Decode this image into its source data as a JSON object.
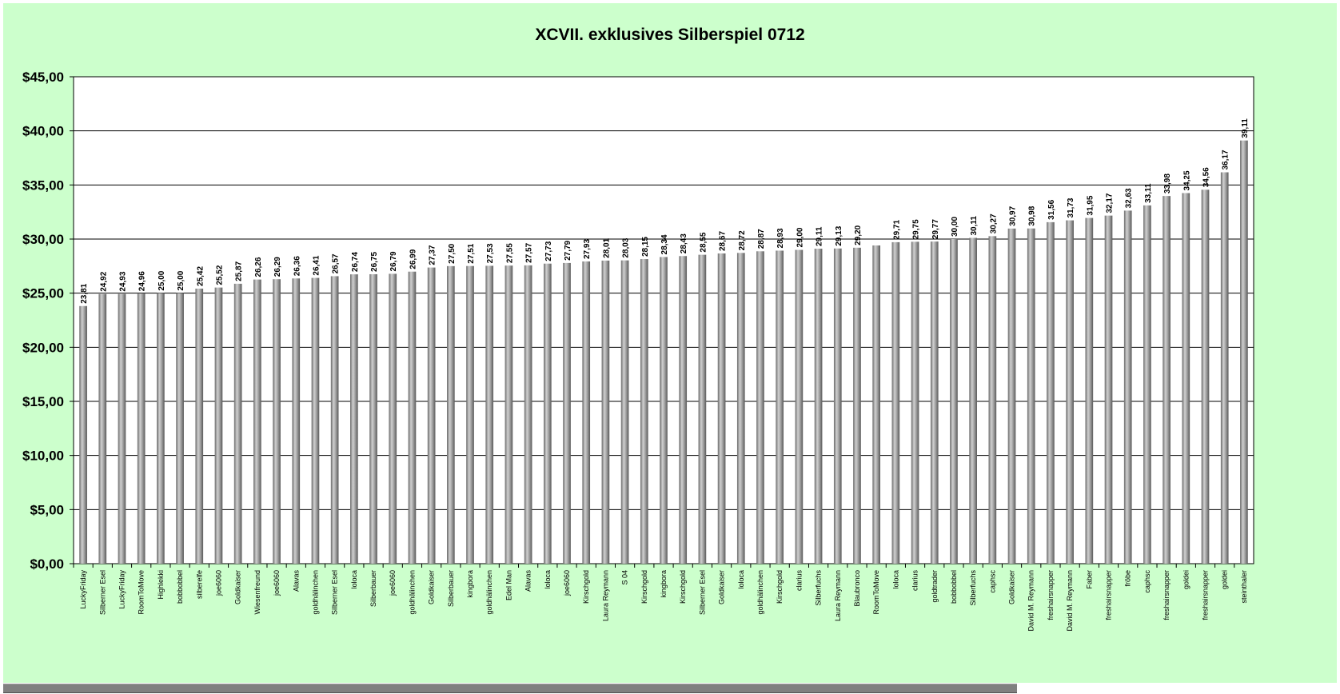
{
  "chart_data": {
    "type": "bar",
    "title": "XCVII. exklusives Silberspiel 0712",
    "xlabel": "",
    "ylabel": "",
    "ylim": [
      0,
      45
    ],
    "yticks": [
      "$0,00",
      "$5,00",
      "$10,00",
      "$15,00",
      "$20,00",
      "$25,00",
      "$30,00",
      "$35,00",
      "$40,00",
      "$45,00"
    ],
    "grid": true,
    "legend": "none",
    "bar_color": "#8c8c8c",
    "categories": [
      "LuckyFriday",
      "Silberner Esel",
      "LuckyFriday",
      "RoomToMove",
      "Highlekki",
      "bobbobbel",
      "silberelfe",
      "joe6060",
      "Goldkaiser",
      "Wiesenfreund",
      "joe6060",
      "Alavas",
      "goldhälinchen",
      "Silberner Esel",
      "loloca",
      "Silberbauer",
      "joe6060",
      "goldhälinchen",
      "Goldkaiser",
      "Silberbauer",
      "kingbora",
      "goldhälinchen",
      "Edel Man",
      "Alavas",
      "loloca",
      "joe6060",
      "Kirschgold",
      "Laura Reymann",
      "S 04",
      "Kirschgold",
      "kingbora",
      "Kirschgold",
      "Silberner Esel",
      "Goldkaiser",
      "loloca",
      "goldhälinchen",
      "Kirschgold",
      "clarius",
      "Silberfuchs",
      "Laura Reymann",
      "Blaubronco",
      "RoomToMove",
      "loloca",
      "clarius",
      "goldtrader",
      "bobbobbel",
      "Silberfuchs",
      "caphsc",
      "Goldkaiser",
      "David M. Reymann",
      "freshairsnapper",
      "David M. Reymann",
      "Faber",
      "freshairsnapper",
      "fröbe",
      "caphsc",
      "freshairsnapper",
      "goldei",
      "freshairsnapper",
      "goldei",
      "steinthaler"
    ],
    "values": [
      23.81,
      24.92,
      24.93,
      24.96,
      25.0,
      25.0,
      25.42,
      25.52,
      25.87,
      26.26,
      26.29,
      26.36,
      26.41,
      26.57,
      26.74,
      26.75,
      26.79,
      26.99,
      27.37,
      27.5,
      27.51,
      27.53,
      27.55,
      27.57,
      27.73,
      27.79,
      27.93,
      28.01,
      28.03,
      28.15,
      28.34,
      28.43,
      28.55,
      28.67,
      28.72,
      28.87,
      28.93,
      29.0,
      29.11,
      29.13,
      29.2,
      29.41,
      29.71,
      29.75,
      29.77,
      30.0,
      30.11,
      30.27,
      30.97,
      30.98,
      31.56,
      31.73,
      31.95,
      32.17,
      32.63,
      33.11,
      33.98,
      34.25,
      34.56,
      36.17,
      39.11
    ],
    "value_labels": [
      "23,81",
      "24,92",
      "24,93",
      "24,96",
      "25,00",
      "25,00",
      "25,42",
      "25,52",
      "25,87",
      "26,26",
      "26,29",
      "26,36",
      "26,41",
      "26,57",
      "26,74",
      "26,75",
      "26,79",
      "26,99",
      "27,37",
      "27,50",
      "27,51",
      "27,53",
      "27,55",
      "27,57",
      "27,73",
      "27,79",
      "27,93",
      "28,01",
      "28,03",
      "28,15",
      "28,34",
      "28,43",
      "28,55",
      "28,67",
      "28,72",
      "28,87",
      "28,93",
      "29,00",
      "29,11",
      "29,13",
      "29,20",
      "",
      "29,71",
      "29,75",
      "29,77",
      "30,00",
      "30,11",
      "30,27",
      "30,97",
      "30,98",
      "31,56",
      "31,73",
      "31,95",
      "32,17",
      "32,63",
      "33,11",
      "33,98",
      "34,25",
      "34,56",
      "36,17",
      "39,11"
    ]
  }
}
